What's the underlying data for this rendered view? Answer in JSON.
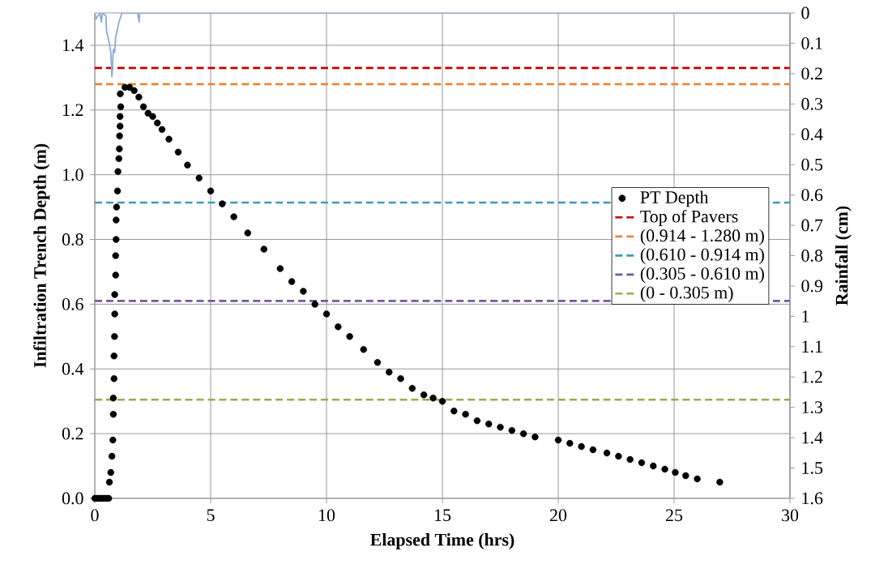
{
  "chart_data": {
    "type": "scatter",
    "xlabel": "Elapsed Time (hrs)",
    "ylabel": "Infiltration Trench Depth (m)",
    "y2label": "Rainfall (cm)",
    "xlim": [
      0,
      30
    ],
    "ylim": [
      0,
      1.5
    ],
    "y2lim": [
      1.6,
      0
    ],
    "xticks": [
      0,
      5,
      10,
      15,
      20,
      25,
      30
    ],
    "yticks": [
      {
        "value": 0,
        "label": "0.0"
      },
      {
        "value": 0.2,
        "label": "0.2"
      },
      {
        "value": 0.4,
        "label": "0.4"
      },
      {
        "value": 0.6,
        "label": "0.6"
      },
      {
        "value": 0.8,
        "label": "0.8"
      },
      {
        "value": 1.0,
        "label": "1.0"
      },
      {
        "value": 1.2,
        "label": "1.2"
      },
      {
        "value": 1.4,
        "label": "1.4"
      }
    ],
    "y2ticks": [
      0,
      0.1,
      0.2,
      0.3,
      0.4,
      0.5,
      0.6,
      0.7,
      0.8,
      0.9,
      1,
      1.1,
      1.2,
      1.3,
      1.4,
      1.5,
      1.6
    ],
    "grid": true,
    "legend": "right",
    "series": [
      {
        "name": "PT Depth",
        "type": "scatter",
        "marker": "circle",
        "color": "#000000",
        "x": [
          0,
          0.1,
          0.2,
          0.3,
          0.4,
          0.5,
          0.6,
          0.63,
          0.69,
          0.74,
          0.78,
          0.8,
          0.8,
          0.83,
          0.83,
          0.85,
          0.86,
          0.86,
          0.9,
          0.9,
          0.92,
          0.92,
          0.94,
          0.98,
          1.0,
          1.04,
          1.06,
          1.07,
          1.09,
          1.09,
          1.12,
          1.1,
          1.3,
          1.5,
          1.7,
          1.9,
          2.1,
          2.3,
          2.5,
          2.7,
          2.9,
          3.2,
          3.6,
          4.0,
          4.5,
          5.0,
          5.5,
          6.0,
          6.6,
          7.3,
          8.0,
          8.5,
          9.0,
          9.5,
          10.0,
          10.5,
          11.0,
          11.6,
          12.2,
          12.7,
          13.2,
          13.7,
          14.2,
          14.6,
          15.0,
          15.5,
          16.0,
          16.5,
          17.0,
          17.5,
          18.0,
          18.5,
          19.0,
          20.0,
          20.5,
          21.0,
          21.5,
          22.1,
          22.6,
          23.1,
          23.6,
          24.1,
          24.6,
          25.05,
          25.5,
          26.0,
          26.97
        ],
        "values": [
          0,
          0,
          0,
          0,
          0,
          0,
          0,
          0.05,
          0.08,
          0.13,
          0.18,
          0.26,
          0.31,
          0.37,
          0.44,
          0.5,
          0.57,
          0.63,
          0.69,
          0.75,
          0.8,
          0.86,
          0.9,
          0.95,
          1.01,
          1.05,
          1.08,
          1.12,
          1.15,
          1.18,
          1.21,
          1.25,
          1.27,
          1.27,
          1.26,
          1.24,
          1.21,
          1.19,
          1.18,
          1.16,
          1.14,
          1.11,
          1.07,
          1.03,
          0.99,
          0.95,
          0.91,
          0.87,
          0.82,
          0.77,
          0.71,
          0.67,
          0.64,
          0.6,
          0.57,
          0.53,
          0.5,
          0.46,
          0.42,
          0.39,
          0.37,
          0.34,
          0.32,
          0.31,
          0.3,
          0.27,
          0.26,
          0.24,
          0.23,
          0.22,
          0.21,
          0.2,
          0.19,
          0.18,
          0.17,
          0.16,
          0.15,
          0.14,
          0.13,
          0.12,
          0.11,
          0.1,
          0.09,
          0.08,
          0.07,
          0.06,
          0.05
        ]
      },
      {
        "type": "line",
        "axis": "y2",
        "color": "#8eaad6",
        "x": [
          0,
          0.05,
          0.22,
          0.28,
          0.33,
          0.48,
          0.51,
          0.57,
          0.63,
          0.69,
          0.74,
          0.8,
          0.86,
          0.9,
          0.96,
          1.04,
          1.13,
          1.17,
          1.85,
          1.91,
          1.94,
          30
        ],
        "values": [
          0,
          0.02,
          0,
          0.03,
          0,
          0.01,
          0.06,
          0.08,
          0.1,
          0.13,
          0.21,
          0.12,
          0.13,
          0.08,
          0.06,
          0.03,
          0.01,
          0,
          0,
          0.03,
          0,
          0
        ]
      }
    ],
    "ref_lines": [
      {
        "axis": "y",
        "value": 1.33,
        "label": "Top of Pavers",
        "color": "#c00000",
        "line_style": "dashed"
      },
      {
        "axis": "y",
        "value": 1.28,
        "label": "(0.914 - 1.280 m)",
        "color": "#e0883c",
        "line_style": "dashed"
      },
      {
        "axis": "y",
        "value": 0.914,
        "label": "(0.610 - 0.914 m)",
        "color": "#3c9bb4",
        "line_style": "dashed"
      },
      {
        "axis": "y",
        "value": 0.61,
        "label": "(0.305 - 0.610 m)",
        "color": "#76599a",
        "line_style": "dashed"
      },
      {
        "axis": "y",
        "value": 0.305,
        "label": "(0 - 0.305 m)",
        "color": "#8fb04f",
        "line_style": "dashed"
      }
    ]
  }
}
